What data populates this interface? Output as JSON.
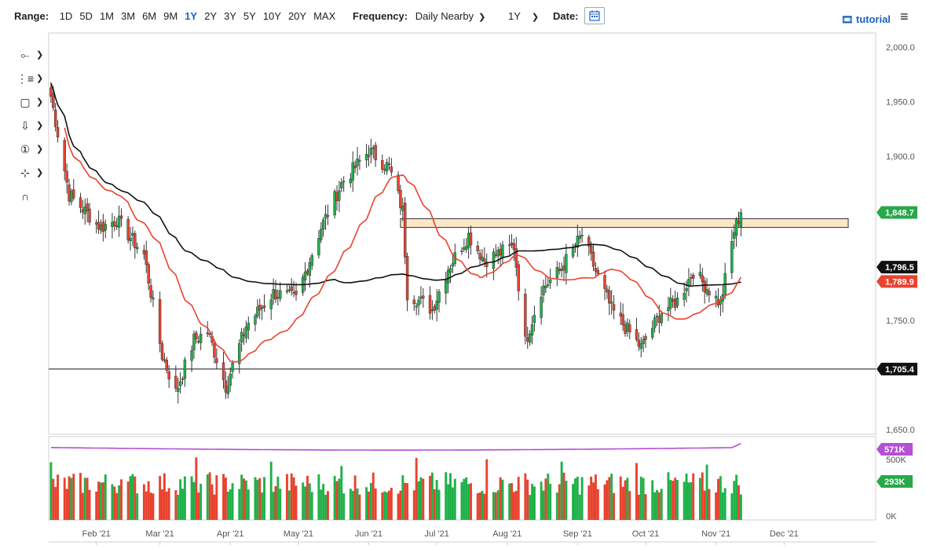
{
  "toolbar": {
    "range_label": "Range:",
    "ranges": [
      "1D",
      "5D",
      "1M",
      "3M",
      "6M",
      "9M",
      "1Y",
      "2Y",
      "3Y",
      "5Y",
      "10Y",
      "20Y",
      "MAX"
    ],
    "active_range": "1Y",
    "frequency_label": "Frequency:",
    "frequency_value": "Daily Nearby",
    "period_value": "1Y",
    "date_label": "Date:",
    "tutorial_label": "tutorial"
  },
  "sidebar": {
    "tools": [
      {
        "icon": "crosshair-icon",
        "glyph": "⟜"
      },
      {
        "icon": "trendline-icon",
        "glyph": "⋮≡"
      },
      {
        "icon": "rectangle-icon",
        "glyph": "▢"
      },
      {
        "icon": "arrow-down-icon",
        "glyph": "⇩"
      },
      {
        "icon": "annotation-number-icon",
        "glyph": "①"
      },
      {
        "icon": "measure-icon",
        "glyph": "⊹"
      },
      {
        "icon": "magnet-icon",
        "glyph": "∩"
      }
    ]
  },
  "colors": {
    "up": "#20b14a",
    "down": "#e8432f",
    "ma_fast": "#e8432f",
    "ma_slow": "#111111",
    "volume_avg": "#b44fd6",
    "zone_fill": "#fbe6c6",
    "last_price_tag": "#27a84a",
    "volume_tag": "#b44fd6",
    "accent": "#1b63c6"
  },
  "chart_data": {
    "type": "candlestick",
    "x_labels": [
      "Feb '21",
      "Mar '21",
      "Apr '21",
      "May '21",
      "Jun '21",
      "Jul '21",
      "Aug '21",
      "Sep '21",
      "Oct '21",
      "Nov '21",
      "Dec '21"
    ],
    "y_ticks": [
      "2,000.0",
      "1,950.0",
      "1,900.0",
      "1,750.0",
      "1,650.0"
    ],
    "y_range": [
      1650,
      2000
    ],
    "volume_ticks": [
      "500K",
      "0K"
    ],
    "price_tags": [
      {
        "label": "1,848.7",
        "value": 1848.7,
        "kind": "last"
      },
      {
        "label": "1,796.5",
        "value": 1796.5,
        "kind": "ma_slow"
      },
      {
        "label": "1,789.9",
        "value": 1789.9,
        "kind": "ma_fast"
      },
      {
        "label": "1,705.4",
        "value": 1705.4,
        "kind": "hline"
      }
    ],
    "volume_tags": [
      {
        "label": "571K",
        "kind": "volume_avg"
      },
      {
        "label": "293K",
        "kind": "volume_last"
      }
    ],
    "horizontal_line": 1705.4,
    "resistance_zone": {
      "from_date": "Jun 15 '21",
      "low": 1835,
      "high": 1843
    },
    "anchors": [
      {
        "date": "Jan 12 '21",
        "price": 1955
      },
      {
        "date": "Jan 20 '21",
        "price": 1865
      },
      {
        "date": "Feb 3 '21",
        "price": 1835
      },
      {
        "date": "Feb 10 '21",
        "price": 1842
      },
      {
        "date": "Feb 22 '21",
        "price": 1810
      },
      {
        "date": "Mar 2 '21",
        "price": 1718
      },
      {
        "date": "Mar 8 '21",
        "price": 1684
      },
      {
        "date": "Mar 16 '21",
        "price": 1732
      },
      {
        "date": "Mar 22 '21",
        "price": 1740
      },
      {
        "date": "Mar 30 '21",
        "price": 1690
      },
      {
        "date": "Apr 8 '21",
        "price": 1745
      },
      {
        "date": "Apr 20 '21",
        "price": 1775
      },
      {
        "date": "Apr 30 '21",
        "price": 1770
      },
      {
        "date": "May 11 '21",
        "price": 1835
      },
      {
        "date": "May 20 '21",
        "price": 1875
      },
      {
        "date": "Jun 1 '21",
        "price": 1905
      },
      {
        "date": "Jun 10 '21",
        "price": 1890
      },
      {
        "date": "Jun 16 '21",
        "price": 1850
      },
      {
        "date": "Jun 18 '21",
        "price": 1775
      },
      {
        "date": "Jun 29 '21",
        "price": 1760
      },
      {
        "date": "Jul 6 '21",
        "price": 1798
      },
      {
        "date": "Jul 15 '21",
        "price": 1828
      },
      {
        "date": "Jul 22 '21",
        "price": 1805
      },
      {
        "date": "Aug 4 '21",
        "price": 1818
      },
      {
        "date": "Aug 9 '21",
        "price": 1730
      },
      {
        "date": "Aug 16 '21",
        "price": 1778
      },
      {
        "date": "Aug 24 '21",
        "price": 1795
      },
      {
        "date": "Sep 3 '21",
        "price": 1828
      },
      {
        "date": "Sep 9 '21",
        "price": 1795
      },
      {
        "date": "Sep 16 '21",
        "price": 1760
      },
      {
        "date": "Sep 29 '21",
        "price": 1725
      },
      {
        "date": "Oct 8 '21",
        "price": 1758
      },
      {
        "date": "Oct 15 '21",
        "price": 1768
      },
      {
        "date": "Oct 22 '21",
        "price": 1795
      },
      {
        "date": "Nov 3 '21",
        "price": 1765
      },
      {
        "date": "Nov 9 '21",
        "price": 1832
      },
      {
        "date": "Nov 12 '21",
        "price": 1848.7
      }
    ]
  }
}
